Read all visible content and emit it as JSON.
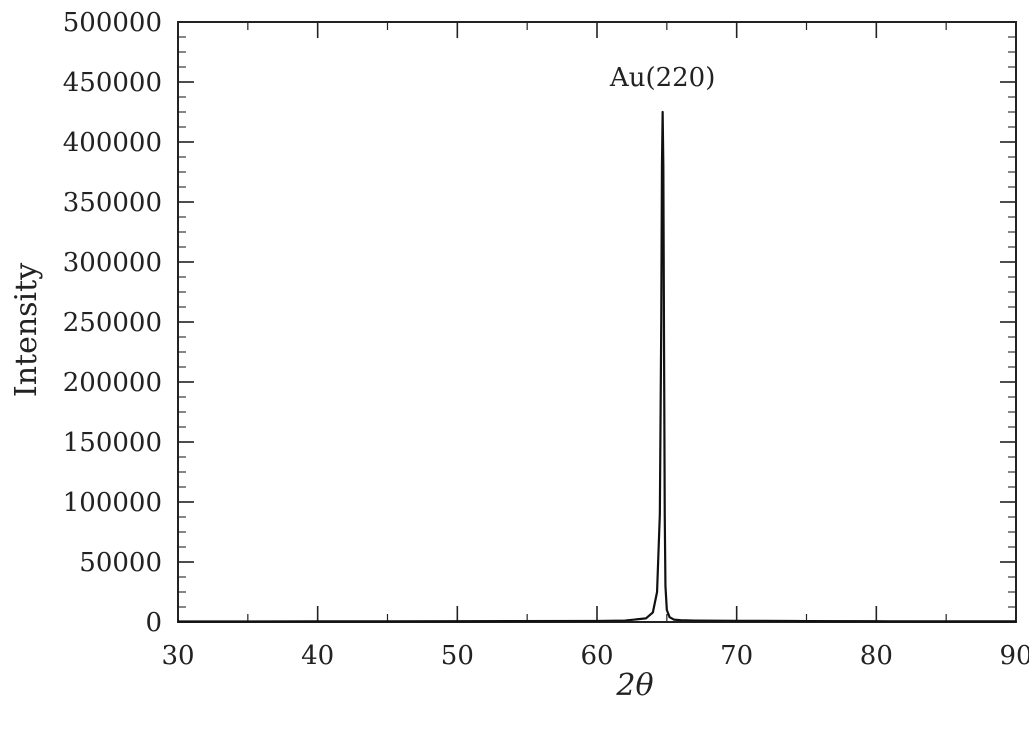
{
  "chart_data": {
    "type": "line",
    "title": "",
    "xlabel": "2θ",
    "ylabel": "Intensity",
    "xlim": [
      30,
      90
    ],
    "ylim": [
      0,
      500000
    ],
    "x_ticks": [
      30,
      40,
      50,
      60,
      70,
      80,
      90
    ],
    "y_ticks": [
      0,
      50000,
      100000,
      150000,
      200000,
      250000,
      300000,
      350000,
      400000,
      450000,
      500000
    ],
    "grid": false,
    "legend": "none",
    "line_color": "#111111",
    "series": [
      {
        "x": [
          30,
          40,
          50,
          60,
          62,
          63.5,
          64,
          64.3,
          64.5,
          64.6,
          64.65,
          64.7,
          64.75,
          64.8,
          64.85,
          64.9,
          65.0,
          65.2,
          65.5,
          66,
          67,
          70,
          74,
          75,
          80,
          90
        ],
        "values": [
          400,
          500,
          600,
          900,
          1200,
          3000,
          8000,
          25000,
          90000,
          250000,
          380000,
          425000,
          380000,
          230000,
          90000,
          30000,
          10000,
          4000,
          2000,
          1500,
          1200,
          1000,
          900,
          700,
          600,
          500
        ]
      }
    ],
    "annotations": [
      {
        "text": "Au(220)",
        "x": 64.7,
        "y": 450000
      }
    ]
  }
}
